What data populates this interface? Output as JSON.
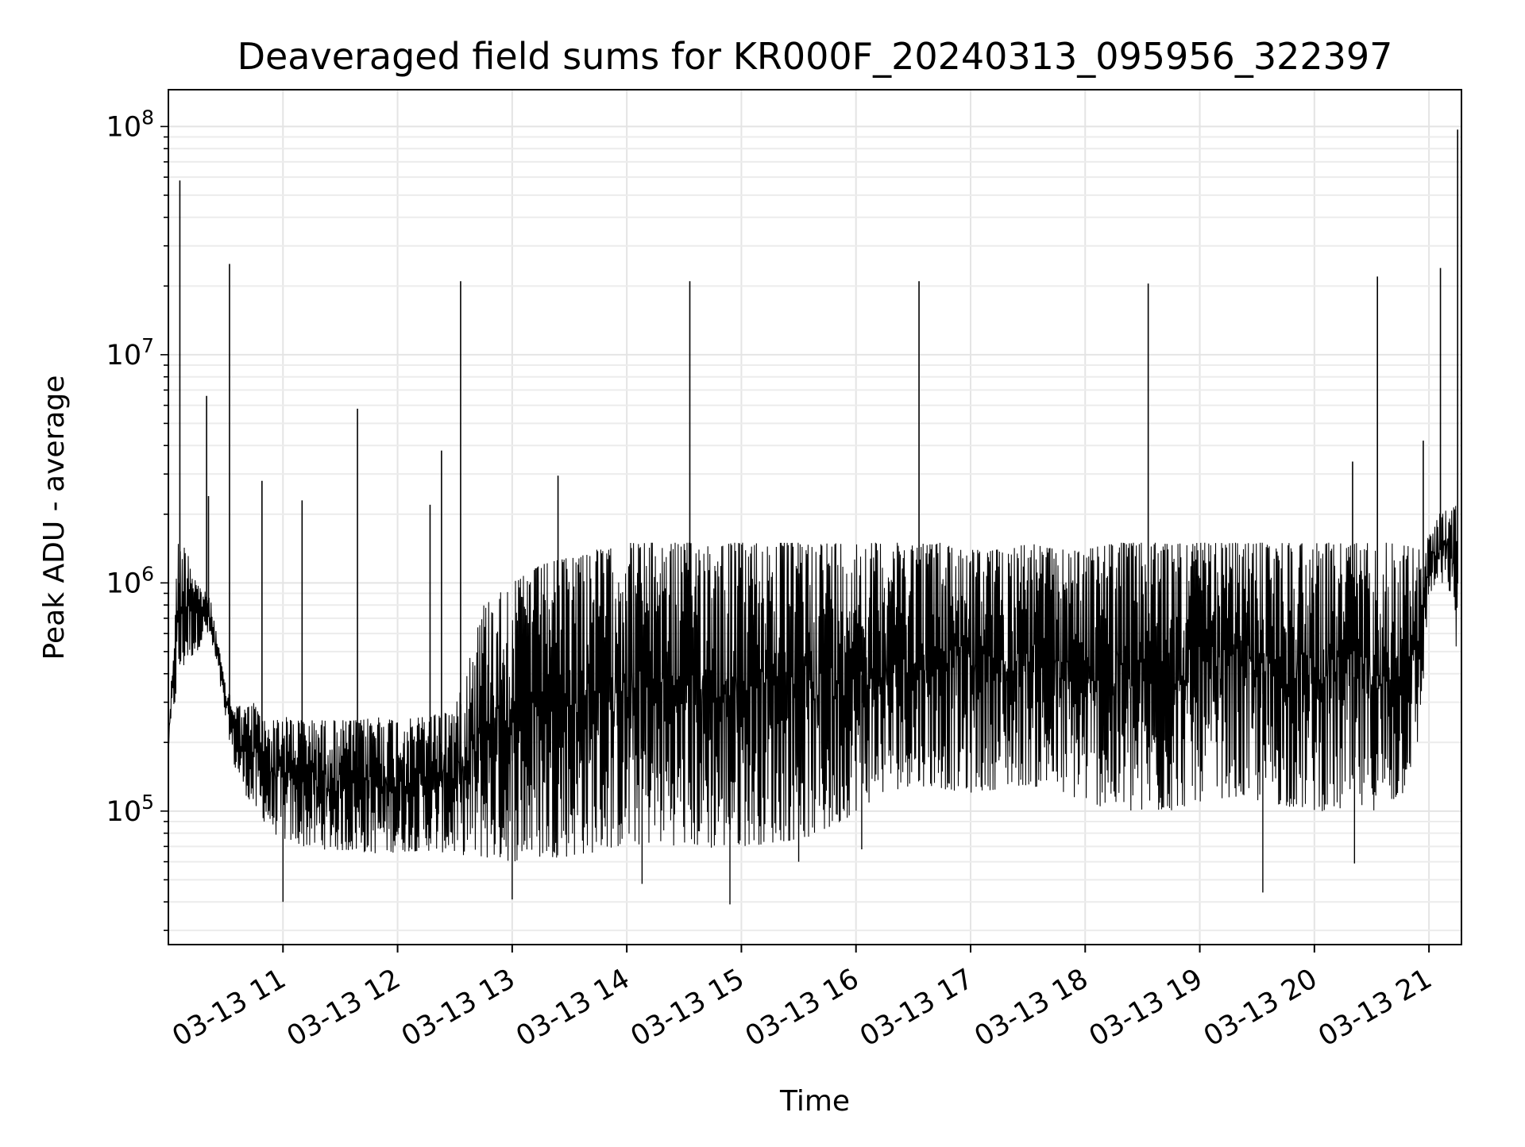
{
  "chart_data": {
    "type": "line",
    "title": "Deaveraged field sums for KR000F_20240313_095956_322397",
    "xlabel": "Time",
    "ylabel": "Peak ADU - average",
    "x_scale": "time",
    "y_scale": "log",
    "xlim": [
      "2024-03-13 10:00",
      "2024-03-13 21:17"
    ],
    "ylim": [
      26000,
      145000000
    ],
    "grid": true,
    "legend": "none",
    "line_color": "#000000",
    "x_ticks": [
      "03-13 11",
      "03-13 12",
      "03-13 13",
      "03-13 14",
      "03-13 15",
      "03-13 16",
      "03-13 17",
      "03-13 18",
      "03-13 19",
      "03-13 20",
      "03-13 21"
    ],
    "y_ticks": [
      {
        "value": 100000,
        "base": "10",
        "exp": "5"
      },
      {
        "value": 1000000,
        "base": "10",
        "exp": "6"
      },
      {
        "value": 10000000,
        "base": "10",
        "exp": "7"
      },
      {
        "value": 100000000,
        "base": "10",
        "exp": "8"
      }
    ],
    "x": [
      "2024-03-13 10:00",
      "2024-03-13 10:05",
      "2024-03-13 10:07",
      "2024-03-13 10:10",
      "2024-03-13 10:15",
      "2024-03-13 10:20",
      "2024-03-13 10:22",
      "2024-03-13 10:26",
      "2024-03-13 10:30",
      "2024-03-13 10:35",
      "2024-03-13 10:40",
      "2024-03-13 10:45",
      "2024-03-13 10:50",
      "2024-03-13 10:55",
      "2024-03-13 11:00",
      "2024-03-13 11:10",
      "2024-03-13 11:20",
      "2024-03-13 11:30",
      "2024-03-13 11:40",
      "2024-03-13 11:50",
      "2024-03-13 12:00",
      "2024-03-13 12:15",
      "2024-03-13 12:30",
      "2024-03-13 12:45",
      "2024-03-13 13:00",
      "2024-03-13 13:15",
      "2024-03-13 13:30",
      "2024-03-13 13:40",
      "2024-03-13 13:50",
      "2024-03-13 14:00",
      "2024-03-13 14:15",
      "2024-03-13 14:30",
      "2024-03-13 14:45",
      "2024-03-13 15:00",
      "2024-03-13 15:15",
      "2024-03-13 15:30",
      "2024-03-13 15:45",
      "2024-03-13 16:00",
      "2024-03-13 16:15",
      "2024-03-13 16:30",
      "2024-03-13 16:45",
      "2024-03-13 17:00",
      "2024-03-13 17:15",
      "2024-03-13 17:30",
      "2024-03-13 17:45",
      "2024-03-13 18:00",
      "2024-03-13 18:15",
      "2024-03-13 18:30",
      "2024-03-13 18:45",
      "2024-03-13 19:00",
      "2024-03-13 19:15",
      "2024-03-13 19:30",
      "2024-03-13 19:45",
      "2024-03-13 20:00",
      "2024-03-13 20:15",
      "2024-03-13 20:30",
      "2024-03-13 20:45",
      "2024-03-13 20:55",
      "2024-03-13 21:00",
      "2024-03-13 21:05",
      "2024-03-13 21:10",
      "2024-03-13 21:15"
    ],
    "series": [
      {
        "values_high": [
          200000,
          1500000,
          1400000,
          1500000,
          1000000,
          900000,
          850000,
          550000,
          350000,
          300000,
          280000,
          300000,
          250000,
          250000,
          260000,
          250000,
          250000,
          250000,
          250000,
          260000,
          250000,
          260000,
          280000,
          800000,
          1000000,
          1200000,
          1300000,
          1400000,
          1400000,
          1500000,
          1500000,
          1500000,
          1500000,
          1500000,
          1500000,
          1500000,
          1500000,
          1500000,
          1500000,
          1500000,
          1500000,
          1400000,
          1400000,
          1500000,
          1400000,
          1400000,
          1500000,
          1500000,
          1500000,
          1500000,
          1500000,
          1500000,
          1500000,
          1500000,
          1500000,
          1500000,
          1500000,
          1400000,
          1600000,
          2000000,
          2100000,
          2200000
        ],
        "values_low": [
          190000,
          350000,
          400000,
          450000,
          500000,
          600000,
          550000,
          400000,
          250000,
          150000,
          120000,
          100000,
          90000,
          80000,
          75000,
          70000,
          68000,
          67000,
          66000,
          65000,
          66000,
          67000,
          65000,
          62000,
          60000,
          62000,
          63000,
          65000,
          68000,
          70000,
          72000,
          70000,
          68000,
          70000,
          72000,
          75000,
          80000,
          100000,
          120000,
          130000,
          125000,
          120000,
          125000,
          130000,
          120000,
          110000,
          100000,
          95000,
          100000,
          110000,
          115000,
          110000,
          105000,
          100000,
          100000,
          100000,
          110000,
          200000,
          900000,
          950000,
          1000000,
          450000
        ]
      }
    ],
    "spikes": [
      {
        "x": "2024-03-13 10:06",
        "value": 58000000
      },
      {
        "x": "2024-03-13 10:20",
        "value": 6600000
      },
      {
        "x": "2024-03-13 10:21",
        "value": 2400000
      },
      {
        "x": "2024-03-13 10:32",
        "value": 25000000
      },
      {
        "x": "2024-03-13 10:49",
        "value": 2800000
      },
      {
        "x": "2024-03-13 11:10",
        "value": 2300000
      },
      {
        "x": "2024-03-13 11:39",
        "value": 5800000
      },
      {
        "x": "2024-03-13 12:17",
        "value": 2200000
      },
      {
        "x": "2024-03-13 12:23",
        "value": 3800000
      },
      {
        "x": "2024-03-13 12:33",
        "value": 21000000
      },
      {
        "x": "2024-03-13 13:24",
        "value": 2950000
      },
      {
        "x": "2024-03-13 14:33",
        "value": 21000000
      },
      {
        "x": "2024-03-13 16:33",
        "value": 21000000
      },
      {
        "x": "2024-03-13 18:33",
        "value": 20500000
      },
      {
        "x": "2024-03-13 20:20",
        "value": 3400000
      },
      {
        "x": "2024-03-13 20:33",
        "value": 22000000
      },
      {
        "x": "2024-03-13 20:57",
        "value": 4200000
      },
      {
        "x": "2024-03-13 21:06",
        "value": 24000000
      },
      {
        "x": "2024-03-13 21:15",
        "value": 97000000
      }
    ],
    "dips": [
      {
        "x": "2024-03-13 11:00",
        "value": 40000
      },
      {
        "x": "2024-03-13 13:00",
        "value": 41000
      },
      {
        "x": "2024-03-13 14:08",
        "value": 48000
      },
      {
        "x": "2024-03-13 14:54",
        "value": 39000
      },
      {
        "x": "2024-03-13 15:30",
        "value": 60000
      },
      {
        "x": "2024-03-13 16:03",
        "value": 68000
      },
      {
        "x": "2024-03-13 19:33",
        "value": 44000
      },
      {
        "x": "2024-03-13 20:21",
        "value": 59000
      }
    ]
  }
}
